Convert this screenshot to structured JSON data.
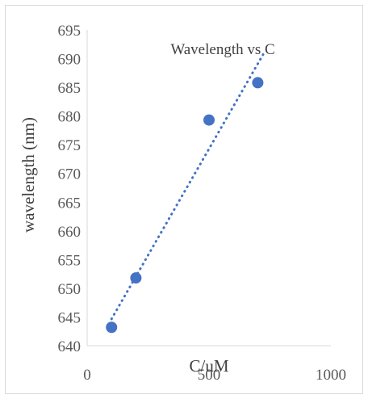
{
  "chart_data": {
    "type": "scatter",
    "title": "Wavelength vs C",
    "xlabel": "C/uM",
    "ylabel": "wavelength (nm)",
    "xlim": [
      0,
      1000
    ],
    "ylim": [
      640,
      695
    ],
    "xticks": [
      0,
      500,
      1000
    ],
    "yticks": [
      640,
      645,
      650,
      655,
      660,
      665,
      670,
      675,
      680,
      685,
      690,
      695
    ],
    "grid": false,
    "trendline": {
      "type": "linear",
      "style": "dotted",
      "x_range": [
        100,
        730
      ]
    },
    "series": [
      {
        "points": [
          {
            "x": 100,
            "y": 643.2
          },
          {
            "x": 200,
            "y": 651.8
          },
          {
            "x": 500,
            "y": 679.3
          },
          {
            "x": 700,
            "y": 685.8
          }
        ]
      }
    ],
    "colors": {
      "marker": "#4472c4",
      "trendline": "#4472c4",
      "axis": "#595959"
    }
  }
}
